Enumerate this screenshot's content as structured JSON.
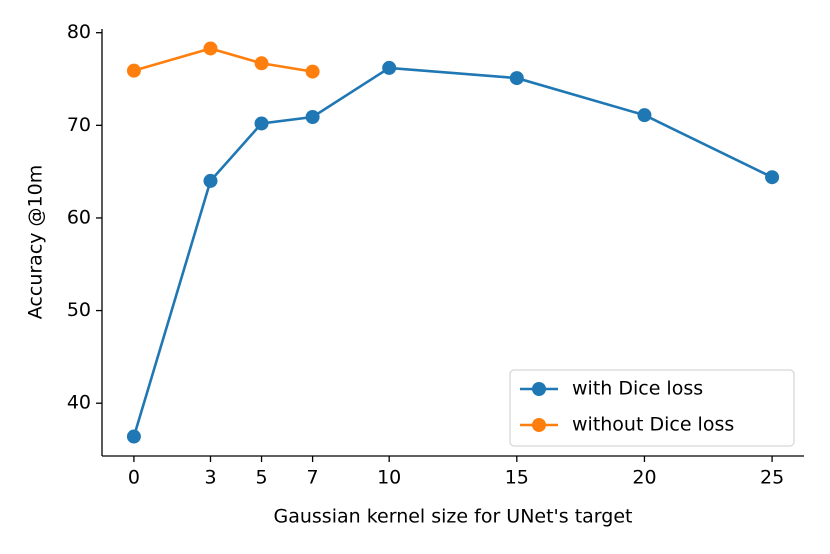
{
  "chart_data": {
    "type": "line",
    "xlabel": "Gaussian kernel size for UNet's target",
    "ylabel": "Accuracy @10m",
    "series": [
      {
        "name": "with Dice loss",
        "color": "#1f77b4",
        "x": [
          0,
          3,
          5,
          7,
          10,
          15,
          20,
          25
        ],
        "values": [
          36.4,
          64.0,
          70.2,
          70.9,
          76.2,
          75.1,
          71.1,
          64.4
        ]
      },
      {
        "name": "without Dice loss",
        "color": "#ff7f0e",
        "x": [
          0,
          3,
          5,
          7
        ],
        "values": [
          75.9,
          78.3,
          76.7,
          75.8
        ]
      }
    ],
    "xlim": [
      -1.25,
      26.25
    ],
    "xticks": [
      0,
      3,
      5,
      7,
      10,
      15,
      20,
      25
    ],
    "ylim": [
      34.3,
      80.4
    ],
    "yticks": [
      40,
      50,
      60,
      70,
      80
    ],
    "legend": "lower right"
  }
}
